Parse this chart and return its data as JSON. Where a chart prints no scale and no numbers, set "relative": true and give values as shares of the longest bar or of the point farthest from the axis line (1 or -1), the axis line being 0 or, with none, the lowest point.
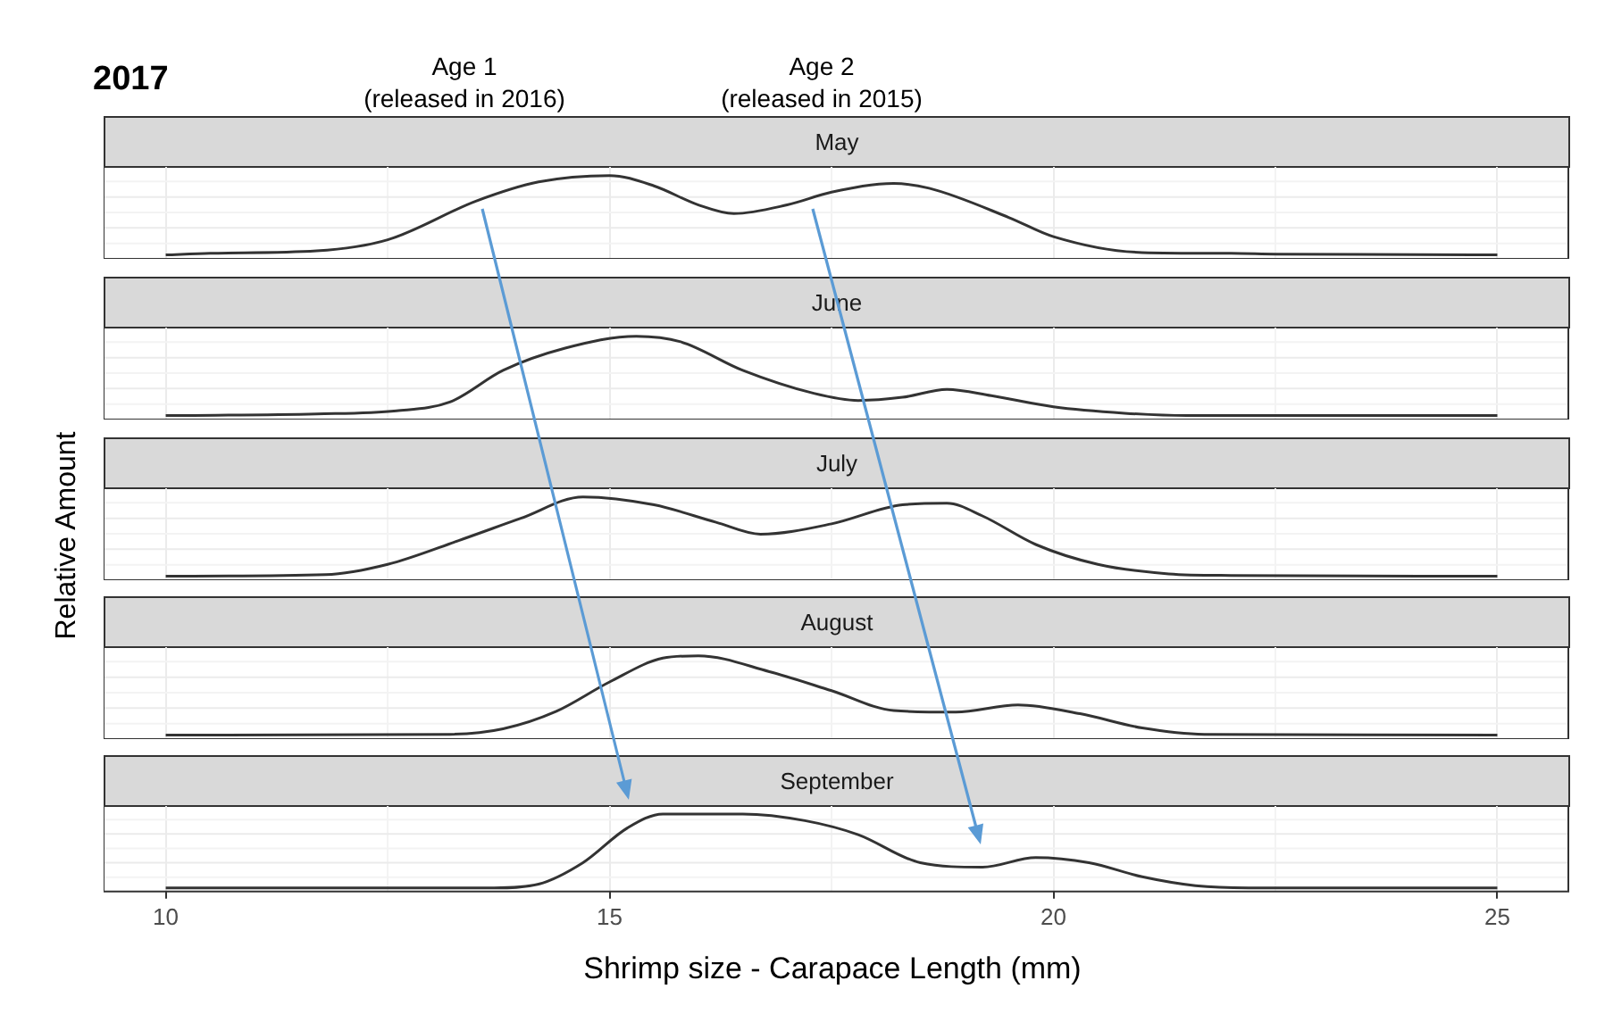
{
  "chart_data": [
    {
      "type": "line",
      "title": "2017",
      "subtitle": "May",
      "annotations": [
        "Age 1\n(released in 2016)",
        "Age 2\n(released in 2015)"
      ],
      "relative": true,
      "color": "#333333",
      "xlim": [
        9.3,
        25.8
      ],
      "xticks": [
        10,
        15,
        20,
        25
      ],
      "grid": true,
      "tick_labels": false,
      "x": [
        10,
        10.5,
        11.7,
        12.5,
        13.5,
        14.2,
        15,
        15.5,
        16,
        16.4,
        17,
        17.5,
        18.2,
        18.6,
        19.5,
        20,
        21,
        22,
        22.5,
        25
      ],
      "values": [
        0,
        0.02,
        0.05,
        0.19,
        0.68,
        0.92,
        1,
        0.87,
        0.63,
        0.52,
        0.63,
        0.79,
        0.9,
        0.84,
        0.47,
        0.23,
        0.03,
        0.02,
        0.01,
        0
      ]
    },
    {
      "type": "line",
      "subtitle": "June",
      "relative": true,
      "color": "#333333",
      "xlim": [
        9.3,
        25.8
      ],
      "xticks": [
        10,
        15,
        20,
        25
      ],
      "grid": true,
      "tick_labels": false,
      "x": [
        10,
        11.7,
        12.6,
        13.2,
        13.8,
        14.5,
        15.3,
        15.8,
        16.5,
        17.3,
        17.8,
        18.3,
        18.8,
        19.3,
        20,
        20.8,
        21.5,
        25
      ],
      "values": [
        0,
        0.02,
        0.06,
        0.17,
        0.57,
        0.85,
        1,
        0.93,
        0.57,
        0.28,
        0.19,
        0.23,
        0.33,
        0.25,
        0.11,
        0.03,
        0,
        0
      ]
    },
    {
      "type": "line",
      "subtitle": "July",
      "ylabel": "Relative Amount",
      "relative": true,
      "color": "#333333",
      "xlim": [
        9.3,
        25.8
      ],
      "xticks": [
        10,
        15,
        20,
        25
      ],
      "grid": true,
      "tick_labels": false,
      "x": [
        10,
        11.8,
        12.5,
        13.3,
        14,
        14.7,
        15.5,
        16.2,
        16.7,
        17.5,
        18.3,
        18.8,
        19.2,
        19.8,
        20.5,
        21.3,
        22,
        25
      ],
      "values": [
        0,
        0.02,
        0.15,
        0.45,
        0.73,
        1,
        0.9,
        0.68,
        0.53,
        0.66,
        0.9,
        0.92,
        0.76,
        0.4,
        0.15,
        0.03,
        0.01,
        0
      ]
    },
    {
      "type": "line",
      "subtitle": "August",
      "relative": true,
      "color": "#333333",
      "xlim": [
        9.3,
        25.8
      ],
      "xticks": [
        10,
        15,
        20,
        25
      ],
      "grid": true,
      "tick_labels": false,
      "x": [
        10,
        13.2,
        13.8,
        14.4,
        15,
        15.6,
        16,
        16.8,
        17.5,
        18.2,
        18.9,
        19.6,
        20.3,
        21,
        21.7,
        25
      ],
      "values": [
        0,
        0.01,
        0.08,
        0.3,
        0.67,
        0.97,
        1,
        0.8,
        0.56,
        0.31,
        0.29,
        0.38,
        0.27,
        0.09,
        0.01,
        0
      ]
    },
    {
      "type": "line",
      "subtitle": "September",
      "xlabel": "Shrimp size - Carapace Length (mm)",
      "relative": true,
      "color": "#333333",
      "xlim": [
        9.3,
        25.8
      ],
      "xticks": [
        10,
        15,
        20,
        25
      ],
      "grid": true,
      "tick_labels": "x",
      "x": [
        10,
        13.7,
        14.2,
        14.7,
        15.2,
        15.6,
        16.5,
        17.2,
        17.8,
        18.5,
        19.2,
        19.8,
        20.4,
        21,
        21.6,
        22.2,
        25
      ],
      "values": [
        0,
        0,
        0.05,
        0.34,
        0.81,
        1,
        1,
        0.91,
        0.72,
        0.34,
        0.28,
        0.41,
        0.34,
        0.15,
        0.03,
        0,
        0
      ]
    }
  ]
}
